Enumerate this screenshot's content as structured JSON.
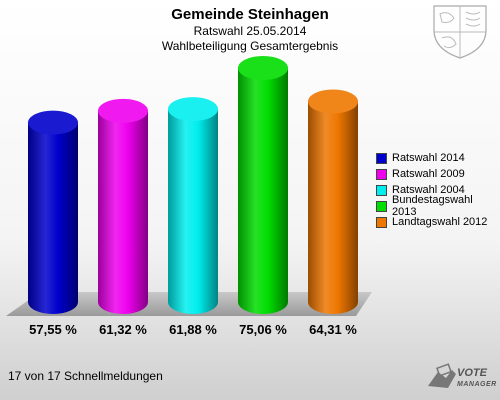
{
  "chart_data": {
    "type": "bar",
    "title": "Gemeinde Steinhagen",
    "subtitle_lines": [
      "Ratswahl 25.05.2014",
      "Wahlbeteiligung Gesamtergebnis"
    ],
    "categories": [
      "Ratswahl 2014",
      "Ratswahl 2009",
      "Ratswahl 2004",
      "Bundestagswahl 2013",
      "Landtagswahl 2012"
    ],
    "values": [
      57.55,
      61.32,
      61.88,
      75.06,
      64.31
    ],
    "value_labels": [
      "57,55 %",
      "61,32 %",
      "61,88 %",
      "75,06 %",
      "64,31 %"
    ],
    "colors": [
      "#0000cc",
      "#ee00ee",
      "#00eeee",
      "#00dd00",
      "#ee7700"
    ],
    "ylim": [
      0,
      75.06
    ],
    "grid": false,
    "legend_position": "right"
  },
  "footer": "17 von 17 Schnellmeldungen",
  "logo": {
    "line1": "VOTE",
    "line2": "MANAGER",
    "icon": "ballot-hand-icon"
  },
  "crest_icon": "coat-of-arms-icon"
}
